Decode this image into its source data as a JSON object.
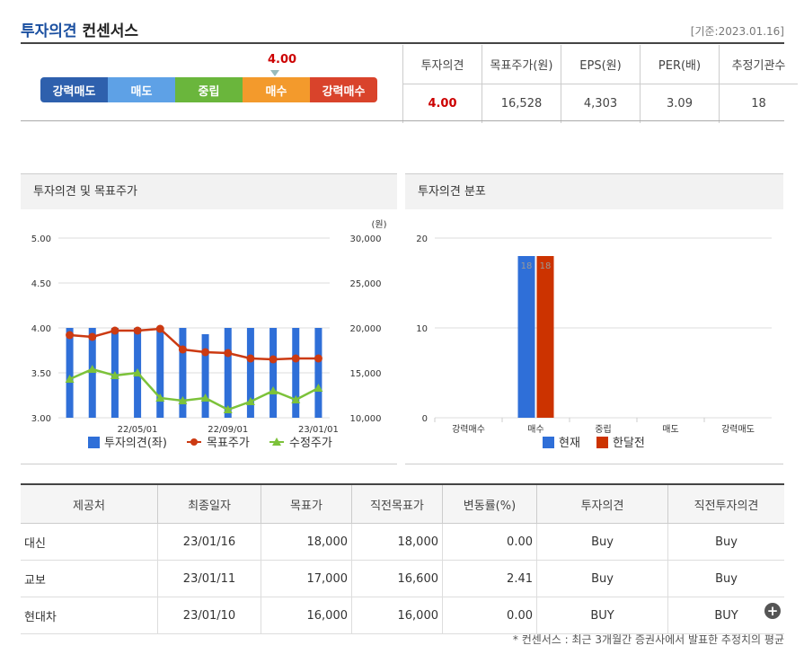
{
  "header": {
    "title_main": "투자의견",
    "title_sub": "컨센서스",
    "base_date": "[기준:2023.01.16]"
  },
  "opinion_scale": {
    "value": "4.00",
    "segments": [
      {
        "label": "강력매도",
        "color": "#2e60ad"
      },
      {
        "label": "매도",
        "color": "#5ea1e6"
      },
      {
        "label": "중립",
        "color": "#6ab63c"
      },
      {
        "label": "매수",
        "color": "#f39a2c"
      },
      {
        "label": "강력매수",
        "color": "#d9432b"
      }
    ]
  },
  "summary": {
    "headers": [
      "투자의견",
      "목표주가(원)",
      "EPS(원)",
      "PER(배)",
      "추정기관수"
    ],
    "values": [
      "4.00",
      "16,528",
      "4,303",
      "3.09",
      "18"
    ]
  },
  "panels": {
    "left_title": "투자의견 및 목표주가",
    "right_title": "투자의견 분포"
  },
  "chart_data": [
    {
      "type": "bar+line",
      "title": "투자의견 및 목표주가",
      "x_tick_labels": [
        "22/05/01",
        "22/09/01",
        "23/01/01"
      ],
      "y_left": {
        "ticks": [
          "5.00",
          "4.50",
          "4.00",
          "3.50",
          "3.00"
        ],
        "range": [
          3,
          5
        ]
      },
      "y_right": {
        "unit": "(원)",
        "ticks": [
          "30,000",
          "25,000",
          "20,000",
          "15,000",
          "10,000"
        ],
        "range": [
          10000,
          30000
        ]
      },
      "series": [
        {
          "name": "투자의견(좌)",
          "type": "bar",
          "color": "#2f6fd8",
          "values": [
            4.0,
            4.0,
            4.0,
            4.0,
            4.0,
            4.0,
            3.93,
            4.0,
            4.0,
            4.0,
            4.0,
            4.0
          ]
        },
        {
          "name": "목표주가",
          "type": "line",
          "color": "#cc3a12",
          "values": [
            19200,
            19000,
            19700,
            19700,
            19900,
            17600,
            17300,
            17200,
            16600,
            16500,
            16600,
            16600
          ]
        },
        {
          "name": "수정주가",
          "type": "line",
          "color": "#7cc23a",
          "values": [
            14300,
            15400,
            14700,
            15000,
            12200,
            11900,
            12200,
            10900,
            11800,
            13000,
            12000,
            13300
          ]
        }
      ]
    },
    {
      "type": "bar",
      "title": "투자의견 분포",
      "categories": [
        "강력매수",
        "매수",
        "중립",
        "매도",
        "강력매도"
      ],
      "y_ticks": [
        "20",
        "10",
        "0"
      ],
      "ylim": [
        0,
        20
      ],
      "series": [
        {
          "name": "현재",
          "color": "#2f6fd8",
          "values": [
            0,
            18,
            0,
            0,
            0
          ]
        },
        {
          "name": "한달전",
          "color": "#cc3300",
          "values": [
            0,
            18,
            0,
            0,
            0
          ]
        }
      ]
    }
  ],
  "list": {
    "headers": [
      "제공처",
      "최종일자",
      "목표가",
      "직전목표가",
      "변동률(%)",
      "투자의견",
      "직전투자의견"
    ],
    "rows": [
      [
        "대신",
        "23/01/16",
        "18,000",
        "18,000",
        "0.00",
        "Buy",
        "Buy"
      ],
      [
        "교보",
        "23/01/11",
        "17,000",
        "16,600",
        "2.41",
        "Buy",
        "Buy"
      ],
      [
        "현대차",
        "23/01/10",
        "16,000",
        "16,000",
        "0.00",
        "BUY",
        "BUY"
      ]
    ]
  },
  "footnote": "* 컨센서스 : 최근 3개월간 증권사에서 발표한 추정치의 평균"
}
